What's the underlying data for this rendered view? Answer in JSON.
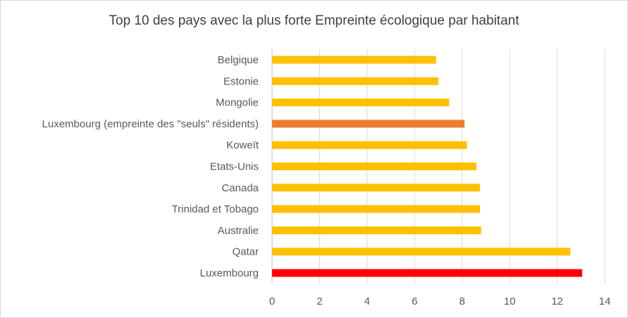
{
  "chart_data": {
    "type": "bar",
    "orientation": "horizontal",
    "title": "Top 10 des pays avec la plus forte Empreinte écologique par habitant",
    "xlabel": "",
    "ylabel": "",
    "xlim": [
      0,
      14
    ],
    "xticks": [
      0,
      2,
      4,
      6,
      8,
      10,
      12,
      14
    ],
    "grid": "vertical",
    "legend": "none",
    "categories": [
      "Belgique",
      "Estonie",
      "Mongolie",
      "Luxembourg (empreinte des \"seuls\" résidents)",
      "Koweït",
      "Etats-Unis",
      "Canada",
      "Trinidad et Tobago",
      "Australie",
      "Qatar",
      "Luxembourg"
    ],
    "values": [
      6.9,
      7.0,
      7.45,
      8.1,
      8.2,
      8.6,
      8.75,
      8.75,
      8.8,
      12.55,
      13.05
    ],
    "colors": [
      "#ffc000",
      "#ffc000",
      "#ffc000",
      "#ed7d31",
      "#ffc000",
      "#ffc000",
      "#ffc000",
      "#ffc000",
      "#ffc000",
      "#ffc000",
      "#ff0000"
    ]
  }
}
